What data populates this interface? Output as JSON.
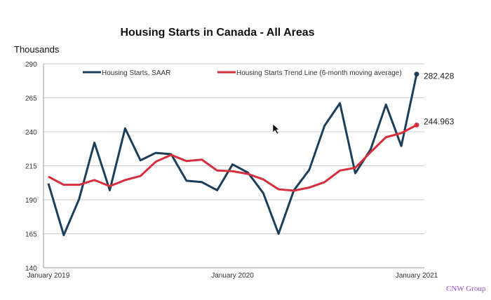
{
  "chart_data": {
    "type": "line",
    "title": "Housing Starts in Canada - All Areas",
    "ylabel": "Thousands",
    "xlabel": "",
    "ylim": [
      140,
      290
    ],
    "yticks": [
      140,
      165,
      190,
      215,
      240,
      265,
      290
    ],
    "xtick_labels": [
      "January 2019",
      "January 2020",
      "January 2021"
    ],
    "grid": true,
    "legend": "top",
    "x": [
      "2019-01",
      "2019-02",
      "2019-03",
      "2019-04",
      "2019-05",
      "2019-06",
      "2019-07",
      "2019-08",
      "2019-09",
      "2019-10",
      "2019-11",
      "2019-12",
      "2020-01",
      "2020-02",
      "2020-03",
      "2020-04",
      "2020-05",
      "2020-06",
      "2020-07",
      "2020-08",
      "2020-09",
      "2020-10",
      "2020-11",
      "2020-12",
      "2021-01"
    ],
    "series": [
      {
        "name": "Housing Starts, SAAR",
        "color": "#1b3f5a",
        "values": [
          202,
          164,
          190.5,
          232,
          197,
          242.5,
          219,
          224.5,
          223.5,
          204,
          203,
          197,
          216,
          210,
          195,
          165,
          197,
          212,
          244.5,
          261,
          209.5,
          227,
          260,
          229.5,
          282.428
        ],
        "end_label": "282.428"
      },
      {
        "name": "Housing Starts Trend Line (6-month moving average)",
        "color": "#d62e3c",
        "values": [
          207,
          201,
          201,
          204.5,
          200,
          204.5,
          207.5,
          218,
          223,
          218.5,
          219.5,
          211.5,
          211,
          209,
          205,
          197.7,
          196.7,
          199,
          203,
          211.5,
          213.5,
          225,
          236,
          239,
          244.963
        ],
        "end_label": "244.963"
      }
    ]
  },
  "credit": "CNW Group",
  "cursor_icon": "mouse-pointer-icon"
}
